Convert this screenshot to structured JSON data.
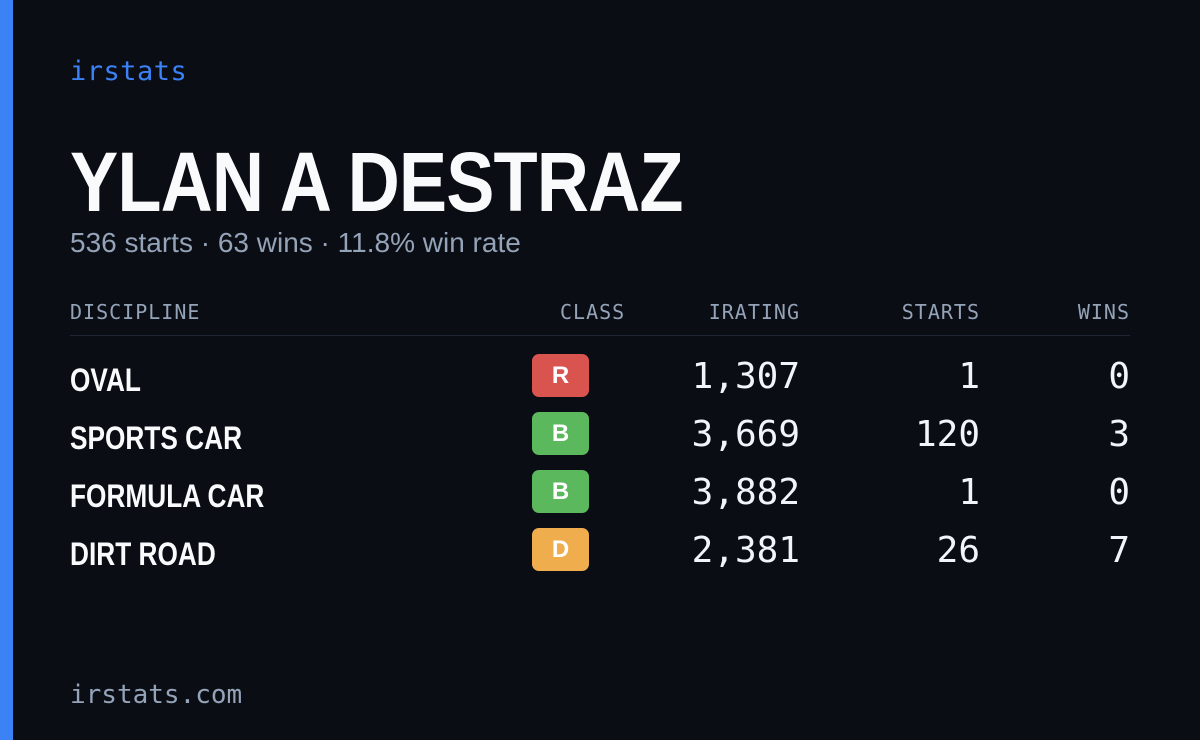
{
  "brand": "irstats",
  "player": {
    "name": "YLAN A DESTRAZ",
    "summary": "536 starts · 63 wins · 11.8% win rate"
  },
  "table": {
    "headers": {
      "discipline": "DISCIPLINE",
      "class": "CLASS",
      "irating": "IRATING",
      "starts": "STARTS",
      "wins": "WINS"
    },
    "rows": [
      {
        "discipline": "OVAL",
        "class": "R",
        "class_color": "#d9534f",
        "irating": "1,307",
        "starts": "1",
        "wins": "0"
      },
      {
        "discipline": "SPORTS CAR",
        "class": "B",
        "class_color": "#5cb85c",
        "irating": "3,669",
        "starts": "120",
        "wins": "3"
      },
      {
        "discipline": "FORMULA CAR",
        "class": "B",
        "class_color": "#5cb85c",
        "irating": "3,882",
        "starts": "1",
        "wins": "0"
      },
      {
        "discipline": "DIRT ROAD",
        "class": "D",
        "class_color": "#f0ad4e",
        "irating": "2,381",
        "starts": "26",
        "wins": "7"
      }
    ]
  },
  "footer": {
    "domain": "irstats.com"
  },
  "colors": {
    "accent": "#3b82f6",
    "background": "#0a0d14"
  }
}
